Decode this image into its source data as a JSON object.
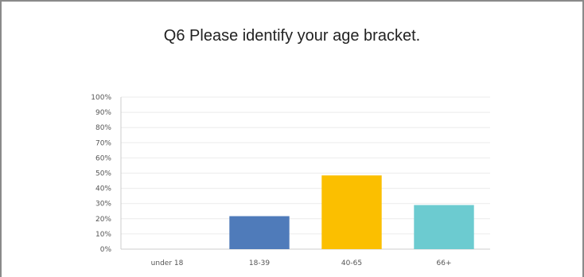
{
  "chart_data": {
    "type": "bar",
    "title": "Q6 Please identify your age bracket.",
    "categories": [
      "under 18",
      "18-39",
      "40-65",
      "66+"
    ],
    "values": [
      0,
      21.7,
      48.5,
      29.0
    ],
    "y_ticks": [
      "0%",
      "10%",
      "20%",
      "30%",
      "40%",
      "50%",
      "60%",
      "70%",
      "80%",
      "90%",
      "100%"
    ],
    "ylim": [
      0,
      100
    ],
    "y_unit": "%",
    "grid": true,
    "legend": "none",
    "colors": [
      "#4f7bba",
      "#4f7bba",
      "#fbbf00",
      "#6ccbd0"
    ]
  },
  "colors": {
    "gridline": "#ebebeb",
    "axis": "#cccccc",
    "frame": "#8a8a8a"
  }
}
